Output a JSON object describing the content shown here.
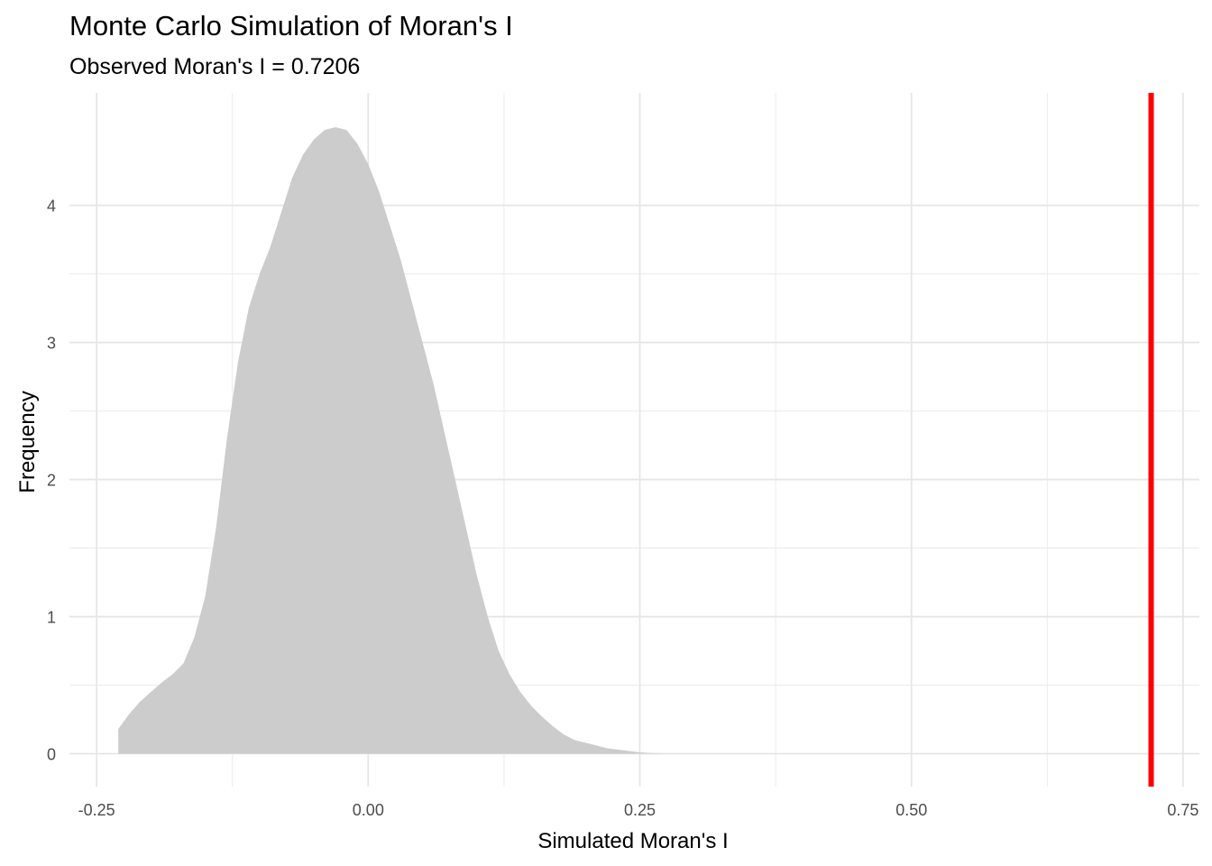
{
  "chart_data": {
    "type": "area",
    "title": "Monte Carlo Simulation of Moran's I",
    "subtitle": "Observed Moran's I = 0.7206",
    "xlabel": "Simulated Moran's I",
    "ylabel": "Frequency",
    "xlim": [
      -0.275,
      0.765
    ],
    "ylim": [
      -0.24,
      4.82
    ],
    "x_ticks": [
      -0.25,
      0,
      0.25,
      0.5,
      0.75
    ],
    "x_tick_labels": [
      "-0.25",
      "0.00",
      "0.25",
      "0.50",
      "0.75"
    ],
    "y_ticks": [
      0,
      1,
      2,
      3,
      4
    ],
    "y_tick_labels": [
      "0",
      "1",
      "2",
      "3",
      "4"
    ],
    "grid": true,
    "legend": "none",
    "fill_color": "#cccccc",
    "observed_line": {
      "x": 0.7206,
      "color": "#ff0000"
    },
    "x": [
      -0.23,
      -0.22,
      -0.21,
      -0.2,
      -0.19,
      -0.18,
      -0.17,
      -0.16,
      -0.15,
      -0.14,
      -0.13,
      -0.12,
      -0.11,
      -0.1,
      -0.09,
      -0.08,
      -0.07,
      -0.06,
      -0.05,
      -0.04,
      -0.03,
      -0.02,
      -0.01,
      0.0,
      0.01,
      0.02,
      0.03,
      0.04,
      0.05,
      0.06,
      0.07,
      0.08,
      0.09,
      0.1,
      0.11,
      0.12,
      0.13,
      0.14,
      0.15,
      0.16,
      0.17,
      0.18,
      0.19,
      0.2,
      0.21,
      0.22,
      0.23,
      0.24,
      0.25,
      0.26,
      0.27,
      0.28
    ],
    "y": [
      0.18,
      0.29,
      0.38,
      0.45,
      0.52,
      0.58,
      0.66,
      0.85,
      1.15,
      1.65,
      2.3,
      2.85,
      3.25,
      3.5,
      3.7,
      3.95,
      4.2,
      4.37,
      4.48,
      4.55,
      4.57,
      4.55,
      4.45,
      4.3,
      4.1,
      3.85,
      3.6,
      3.3,
      3.0,
      2.7,
      2.35,
      2.0,
      1.65,
      1.3,
      1.0,
      0.75,
      0.58,
      0.45,
      0.35,
      0.27,
      0.2,
      0.14,
      0.1,
      0.08,
      0.06,
      0.04,
      0.03,
      0.02,
      0.01,
      0.005,
      0.002,
      0.0
    ]
  }
}
